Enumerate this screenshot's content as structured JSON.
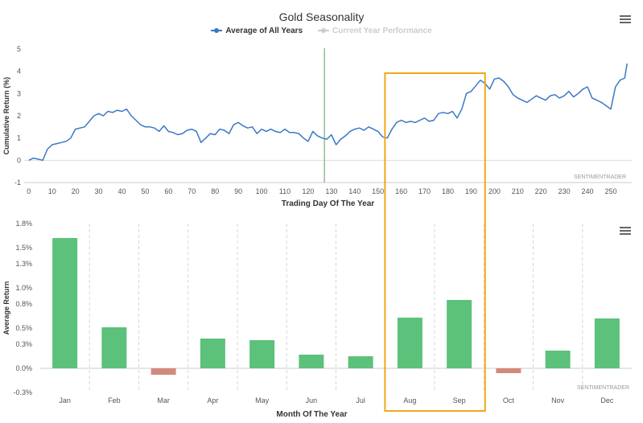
{
  "title": "Gold Seasonality",
  "legend": [
    {
      "name": "Average of All Years",
      "color": "#3a78c6",
      "active": true
    },
    {
      "name": "Current Year Performance",
      "color": "#cccccc",
      "active": false
    }
  ],
  "watermark": "SENTIMENTRADER",
  "colors": {
    "line": "#3a78c6",
    "positive": "#5cc17a",
    "negative": "#d4897d",
    "highlight": "#f0a818",
    "marker": "#8fbf8f",
    "grid": "#e6e6e6"
  },
  "chart_data": [
    {
      "type": "line",
      "xlabel": "Trading Day Of The Year",
      "ylabel": "Cumulative Return (%)",
      "xlim": [
        -2,
        259
      ],
      "ylim": [
        -1,
        5
      ],
      "xticks": [
        0,
        10,
        20,
        30,
        40,
        50,
        60,
        70,
        80,
        90,
        100,
        110,
        120,
        130,
        140,
        150,
        160,
        170,
        180,
        190,
        200,
        210,
        220,
        230,
        240,
        250
      ],
      "yticks": [
        -1,
        0,
        1,
        2,
        3,
        4,
        5
      ],
      "vline_x": 127,
      "highlight_x_range": [
        153,
        196
      ],
      "series": [
        {
          "name": "Average of All Years",
          "x": [
            0,
            2,
            4,
            6,
            8,
            10,
            12,
            14,
            16,
            18,
            20,
            22,
            24,
            26,
            28,
            30,
            32,
            34,
            36,
            38,
            40,
            42,
            44,
            46,
            48,
            50,
            52,
            54,
            56,
            58,
            60,
            62,
            64,
            66,
            68,
            70,
            72,
            74,
            76,
            78,
            80,
            82,
            84,
            86,
            88,
            90,
            92,
            94,
            96,
            98,
            100,
            102,
            104,
            106,
            108,
            110,
            112,
            114,
            116,
            118,
            120,
            122,
            124,
            126,
            128,
            130,
            132,
            134,
            136,
            138,
            140,
            142,
            144,
            146,
            148,
            150,
            152,
            154,
            156,
            158,
            160,
            162,
            164,
            166,
            168,
            170,
            172,
            174,
            176,
            178,
            180,
            182,
            184,
            186,
            188,
            190,
            192,
            194,
            196,
            198,
            200,
            202,
            204,
            206,
            208,
            210,
            212,
            214,
            216,
            218,
            220,
            222,
            224,
            226,
            228,
            230,
            232,
            234,
            236,
            238,
            240,
            242,
            244,
            246,
            248,
            250,
            252,
            254,
            256,
            257
          ],
          "values": [
            0.0,
            0.1,
            0.05,
            0.0,
            0.5,
            0.7,
            0.75,
            0.8,
            0.85,
            1.0,
            1.4,
            1.45,
            1.5,
            1.75,
            2.0,
            2.1,
            2.0,
            2.2,
            2.15,
            2.25,
            2.2,
            2.3,
            2.0,
            1.8,
            1.6,
            1.5,
            1.5,
            1.45,
            1.3,
            1.55,
            1.3,
            1.25,
            1.15,
            1.2,
            1.35,
            1.4,
            1.3,
            0.8,
            1.0,
            1.2,
            1.15,
            1.4,
            1.35,
            1.2,
            1.6,
            1.7,
            1.55,
            1.45,
            1.5,
            1.2,
            1.4,
            1.3,
            1.4,
            1.3,
            1.25,
            1.4,
            1.25,
            1.25,
            1.2,
            1.0,
            0.85,
            1.3,
            1.1,
            1.0,
            0.95,
            1.15,
            0.7,
            0.95,
            1.1,
            1.3,
            1.4,
            1.45,
            1.35,
            1.5,
            1.4,
            1.3,
            1.05,
            1.0,
            1.4,
            1.7,
            1.8,
            1.7,
            1.75,
            1.7,
            1.8,
            1.9,
            1.75,
            1.8,
            2.1,
            2.15,
            2.1,
            2.2,
            1.9,
            2.3,
            3.0,
            3.1,
            3.35,
            3.6,
            3.45,
            3.2,
            3.65,
            3.7,
            3.55,
            3.3,
            2.95,
            2.8,
            2.7,
            2.6,
            2.75,
            2.9,
            2.8,
            2.7,
            2.9,
            2.95,
            2.8,
            2.9,
            3.1,
            2.85,
            3.0,
            3.2,
            3.3,
            2.8,
            2.7,
            2.6,
            2.45,
            2.3,
            3.3,
            3.6,
            3.7,
            4.35
          ]
        }
      ]
    },
    {
      "type": "bar",
      "xlabel": "Month Of The Year",
      "ylabel": "Average Return",
      "ylim": [
        -0.3,
        1.8
      ],
      "yticks": [
        -0.3,
        0.0,
        0.3,
        0.5,
        0.8,
        1.0,
        1.3,
        1.5,
        1.8
      ],
      "ytick_labels": [
        "-0.3%",
        "0.0%",
        "0.3%",
        "0.5%",
        "0.8%",
        "1.0%",
        "1.3%",
        "1.5%",
        "1.8%"
      ],
      "categories": [
        "Jan",
        "Feb",
        "Mar",
        "Apr",
        "May",
        "Jun",
        "Jul",
        "Aug",
        "Sep",
        "Oct",
        "Nov",
        "Dec"
      ],
      "values": [
        1.62,
        0.51,
        -0.08,
        0.37,
        0.35,
        0.17,
        0.15,
        0.63,
        0.85,
        -0.06,
        0.22,
        0.62
      ],
      "highlight_categories": [
        "Aug",
        "Sep"
      ]
    }
  ]
}
